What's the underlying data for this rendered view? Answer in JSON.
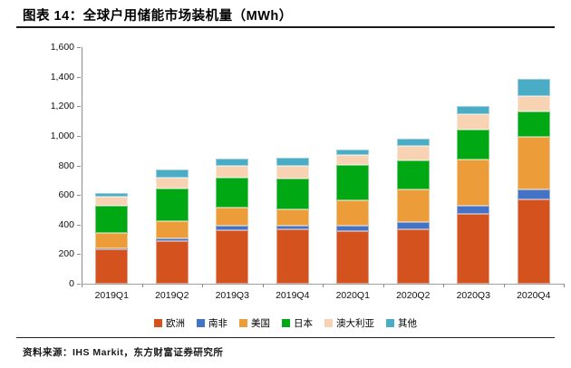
{
  "figure": {
    "title": "图表 14：全球户用储能市场装机量（MWh）",
    "source": "资料来源：IHS Markit，东方财富证券研究所"
  },
  "chart_data": {
    "type": "bar",
    "stacked": true,
    "title": "全球户用储能市场装机量（MWh）",
    "categories": [
      "2019Q1",
      "2019Q2",
      "2019Q3",
      "2019Q4",
      "2020Q1",
      "2020Q2",
      "2020Q3",
      "2020Q4"
    ],
    "series": [
      {
        "name": "欧洲",
        "color": "#D4521E",
        "values": [
          230,
          290,
          360,
          365,
          355,
          370,
          475,
          570
        ]
      },
      {
        "name": "南非",
        "color": "#4472C4",
        "values": [
          10,
          15,
          30,
          25,
          35,
          45,
          50,
          70
        ]
      },
      {
        "name": "美国",
        "color": "#EC9C38",
        "values": [
          105,
          115,
          125,
          115,
          175,
          220,
          315,
          355
        ]
      },
      {
        "name": "日本",
        "color": "#00A814",
        "values": [
          185,
          225,
          205,
          205,
          240,
          200,
          200,
          170
        ]
      },
      {
        "name": "澳大利亚",
        "color": "#F8D3B3",
        "values": [
          60,
          75,
          75,
          85,
          65,
          95,
          105,
          105
        ]
      },
      {
        "name": "其他",
        "color": "#4BACC6",
        "values": [
          20,
          50,
          50,
          60,
          40,
          50,
          55,
          115
        ]
      }
    ],
    "totals": [
      610,
      770,
      845,
      855,
      910,
      980,
      1200,
      1385
    ],
    "xlabel": "",
    "ylabel": "",
    "ylim": [
      0,
      1600
    ],
    "ytick_step": 200,
    "ytick_labels": [
      "0",
      "200",
      "400",
      "600",
      "800",
      "1,000",
      "1,200",
      "1,400",
      "1,600"
    ],
    "grid": false,
    "legend_position": "bottom",
    "axis_color": "#8c8c8c"
  }
}
